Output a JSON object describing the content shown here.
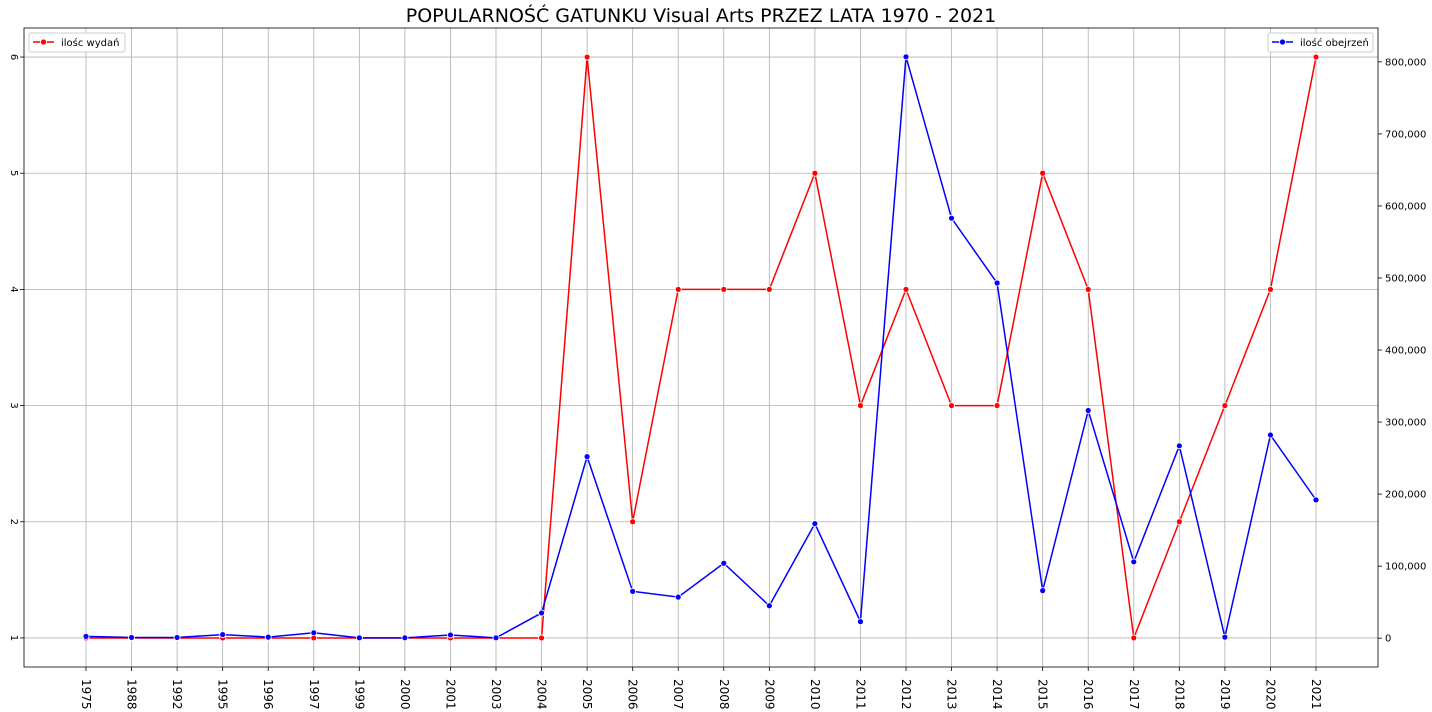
{
  "chart_data": {
    "type": "line",
    "title": "POPULARNOŚĆ GATUNKU Visual Arts PRZEZ LATA 1970 - 2021",
    "categories": [
      "1975",
      "1988",
      "1992",
      "1995",
      "1996",
      "1997",
      "1999",
      "2000",
      "2001",
      "2003",
      "2004",
      "2005",
      "2006",
      "2007",
      "2008",
      "2009",
      "2010",
      "2011",
      "2012",
      "2013",
      "2014",
      "2015",
      "2016",
      "2017",
      "2018",
      "2019",
      "2020",
      "2021"
    ],
    "series": [
      {
        "name": "ilośc wydań",
        "axis": "left",
        "color": "#ff0000",
        "values": [
          1,
          1,
          1,
          1,
          1,
          1,
          1,
          1,
          1,
          1,
          1,
          6,
          2,
          4,
          4,
          4,
          5,
          3,
          4,
          3,
          3,
          5,
          4,
          1,
          2,
          3,
          4,
          6
        ]
      },
      {
        "name": "ilość obejrzeń",
        "axis": "right",
        "color": "#0000ff",
        "values": [
          2500,
          1000,
          1000,
          5000,
          1500,
          7500,
          500,
          500,
          4500,
          500,
          35000,
          252000,
          65000,
          57000,
          104000,
          45000,
          159000,
          23000,
          807000,
          583000,
          493000,
          66000,
          316000,
          106000,
          267000,
          1500,
          282000,
          192000
        ]
      }
    ],
    "left_axis": {
      "ticks": [
        "1",
        "2",
        "3",
        "4",
        "5",
        "6"
      ],
      "ylim": [
        0.75,
        6.25
      ]
    },
    "right_axis": {
      "ticks": [
        "0",
        "100,000",
        "200,000",
        "300,000",
        "400,000",
        "500,000",
        "600,000",
        "700,000",
        "800,000"
      ],
      "ylim": [
        -40000,
        847000
      ]
    },
    "grid": true,
    "legend": {
      "left_series": "upper-left",
      "right_series": "upper-right"
    }
  }
}
